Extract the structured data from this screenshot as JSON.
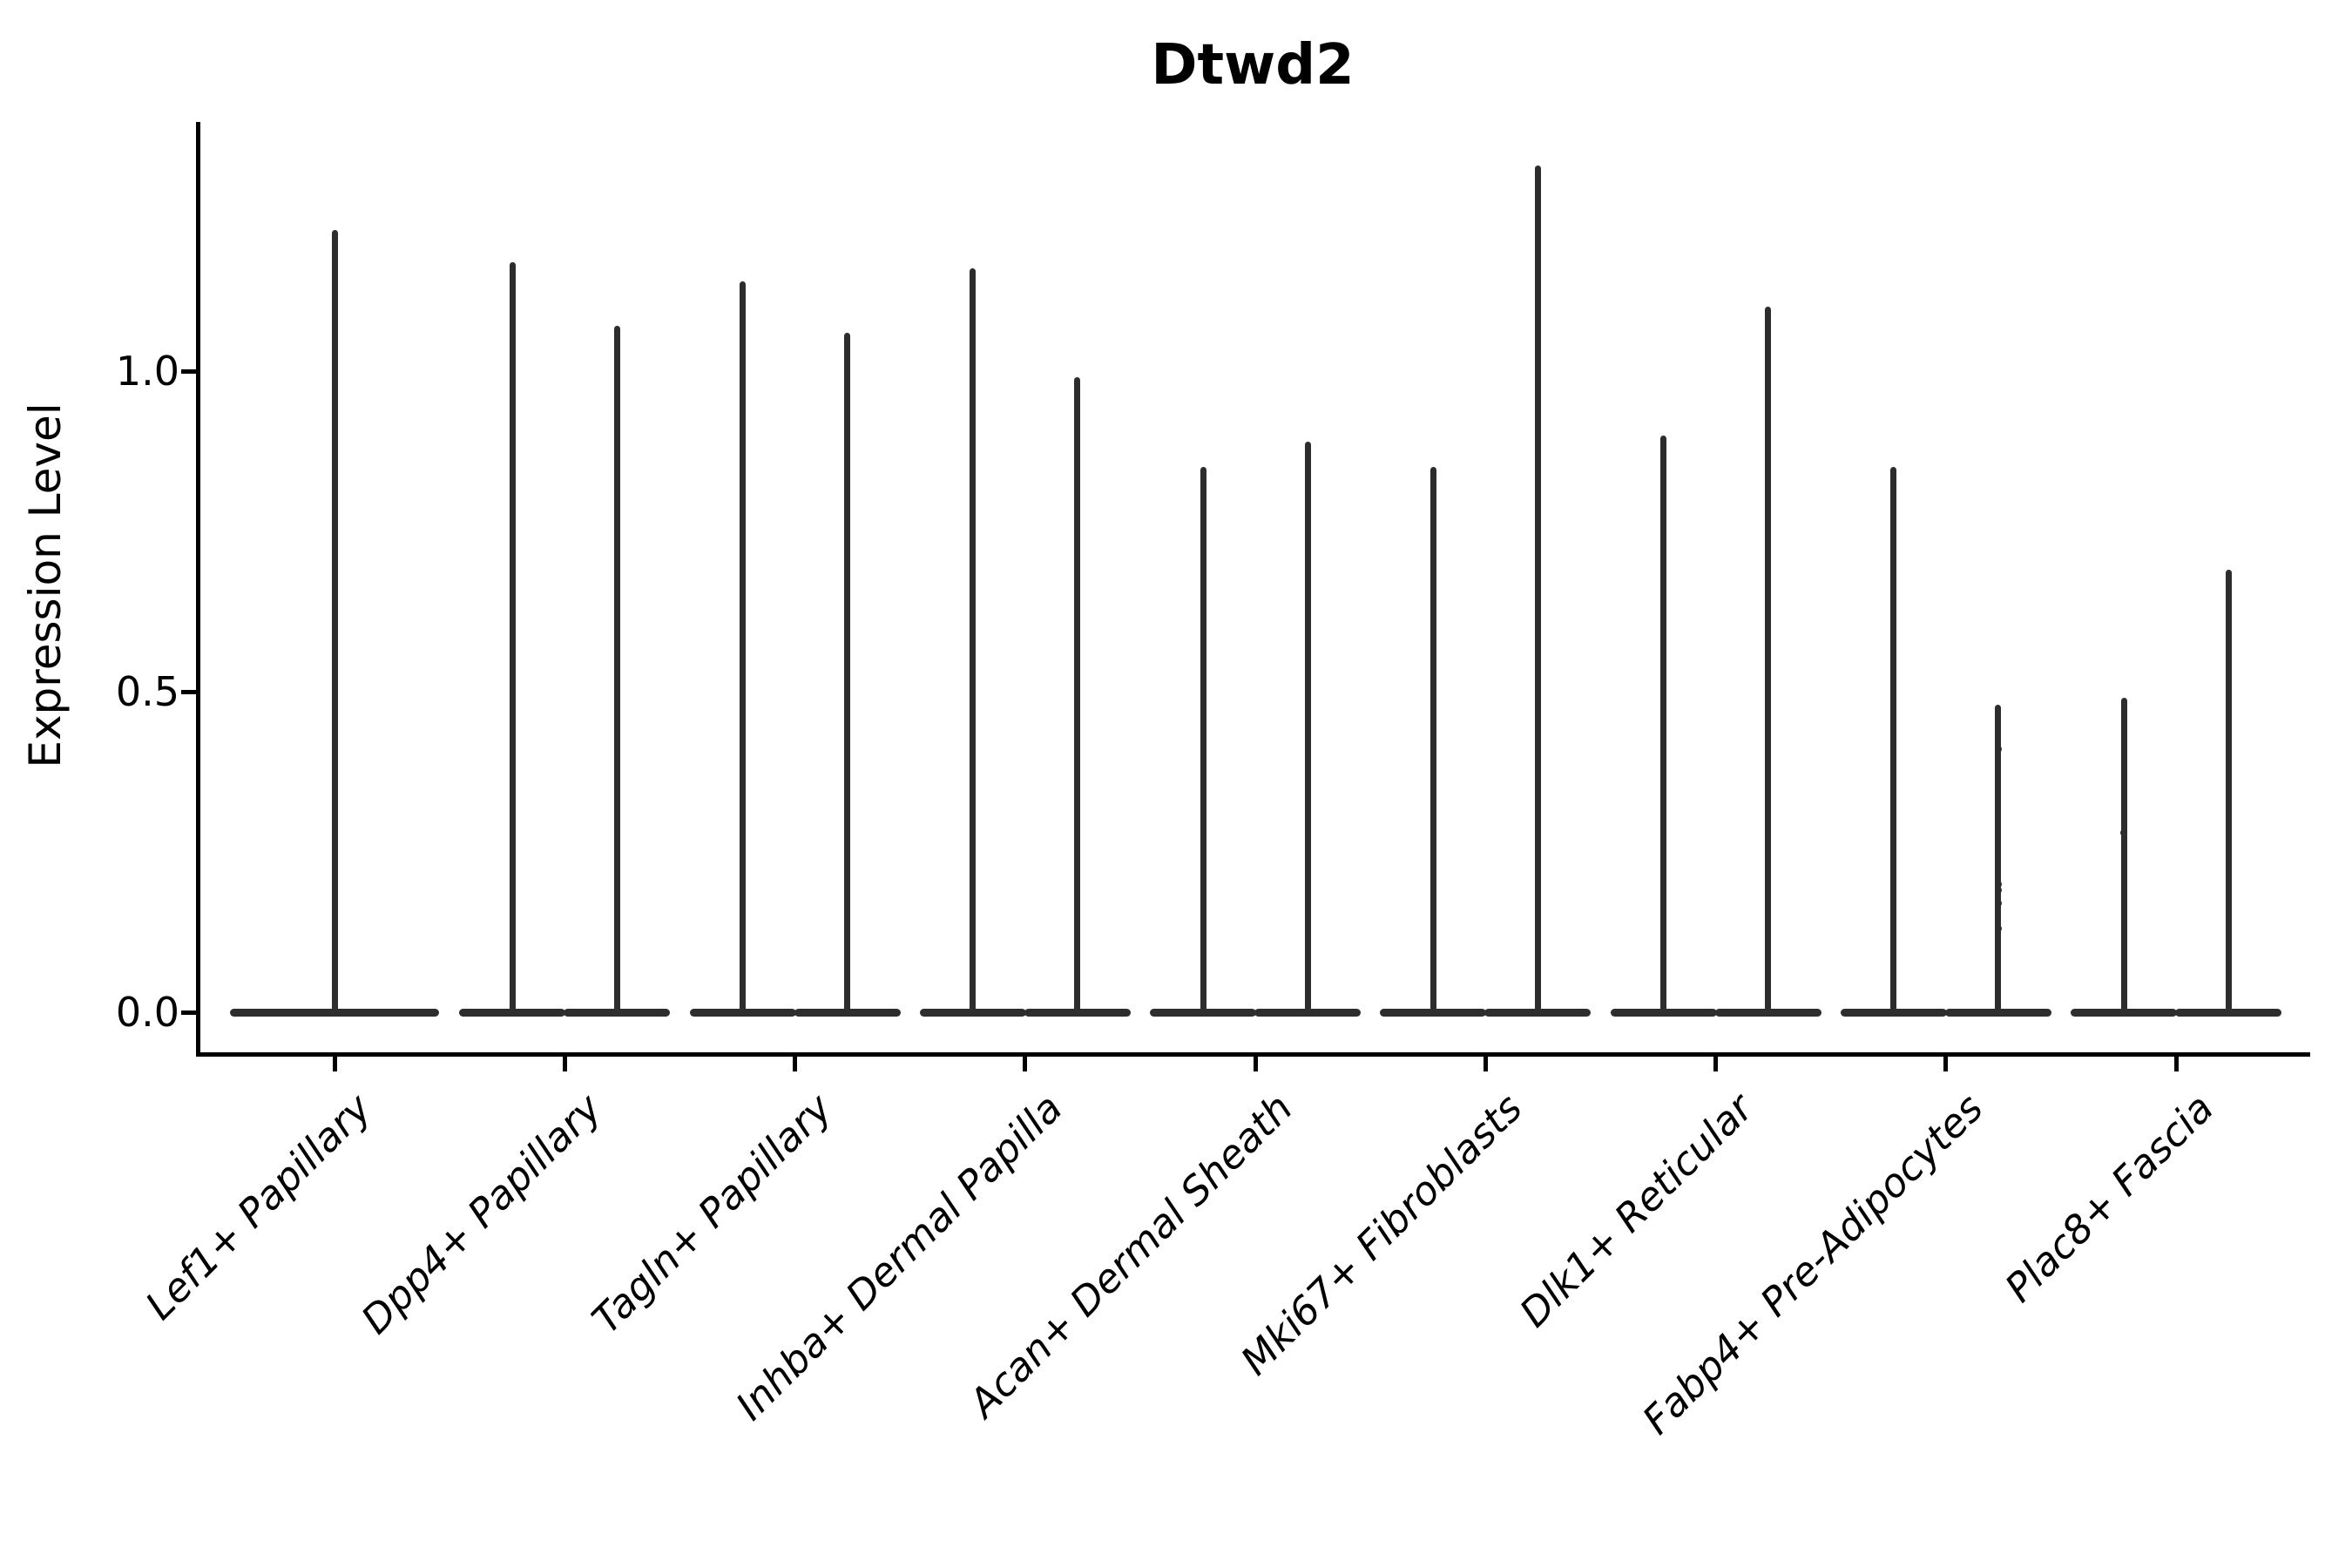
{
  "title": "Dtwd2",
  "colors": {
    "violin": "#2d2d2d",
    "axis": "#000000",
    "text": "#000000",
    "background": "#ffffff"
  },
  "chart_data": {
    "type": "violin",
    "title": "Dtwd2",
    "xlabel": "",
    "ylabel": "Expression Level",
    "ytick_labels": [
      "0.0",
      "0.5",
      "1.0"
    ],
    "yticks": [
      0.0,
      0.5,
      1.0
    ],
    "ylim": [
      -0.07,
      1.39
    ],
    "grid": false,
    "legend": "none",
    "categories": [
      "Lef1+ Papillary",
      "Dpp4+ Papillary",
      "Tagln+ Papillary",
      "Inhba+ Dermal Papilla",
      "Acan+ Dermal Sheath",
      "Mki67+ Fibroblasts",
      "Dlk1+ Reticular",
      "Fabp4+ Pre-Adipocytes",
      "Plac8+ Fascia"
    ],
    "violins": [
      {
        "category": "Lef1+ Papillary",
        "bulk_at": 0.0,
        "spike_maxima": [
          1.22
        ]
      },
      {
        "category": "Dpp4+ Papillary",
        "bulk_at": 0.0,
        "spike_maxima": [
          1.17,
          1.07
        ]
      },
      {
        "category": "Tagln+ Papillary",
        "bulk_at": 0.0,
        "spike_maxima": [
          1.14,
          1.06
        ]
      },
      {
        "category": "Inhba+ Dermal Papilla",
        "bulk_at": 0.0,
        "spike_maxima": [
          1.16,
          0.99
        ]
      },
      {
        "category": "Acan+ Dermal Sheath",
        "bulk_at": 0.0,
        "spike_maxima": [
          0.85,
          0.89
        ]
      },
      {
        "category": "Mki67+ Fibroblasts",
        "bulk_at": 0.0,
        "spike_maxima": [
          0.85,
          1.32
        ]
      },
      {
        "category": "Dlk1+ Reticular",
        "bulk_at": 0.0,
        "spike_maxima": [
          0.9,
          1.1
        ]
      },
      {
        "category": "Fabp4+ Pre-Adipocytes",
        "bulk_at": 0.0,
        "spike_maxima": [
          0.85,
          0.48
        ],
        "dots": [
          {
            "violin_index": 1,
            "values": [
              0.41,
              0.2,
              0.19,
              0.17,
              0.13
            ]
          }
        ]
      },
      {
        "category": "Plac8+ Fascia",
        "bulk_at": 0.0,
        "spike_maxima": [
          0.49,
          0.69
        ],
        "dots": [
          {
            "violin_index": 0,
            "values": [
              0.28
            ]
          }
        ]
      }
    ]
  }
}
